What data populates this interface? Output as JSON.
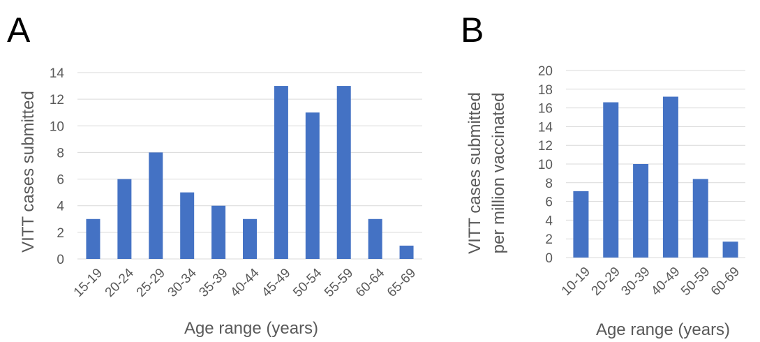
{
  "chart_data": [
    {
      "panel_label": "A",
      "type": "bar",
      "categories": [
        "15-19",
        "20-24",
        "25-29",
        "30-34",
        "35-39",
        "40-44",
        "45-49",
        "50-54",
        "55-59",
        "60-64",
        "65-69"
      ],
      "values": [
        3,
        6,
        8,
        5,
        4,
        3,
        13,
        11,
        13,
        3,
        1
      ],
      "xlabel": "Age range (years)",
      "ylabel": [
        "VITT cases submitted"
      ],
      "ylim": [
        0,
        14
      ],
      "yticks": [
        0,
        2,
        4,
        6,
        8,
        10,
        12,
        14
      ],
      "grid": true,
      "bar_color": "#4472c4"
    },
    {
      "panel_label": "B",
      "type": "bar",
      "categories": [
        "10-19",
        "20-29",
        "30-39",
        "40-49",
        "50-59",
        "60-69"
      ],
      "values": [
        7.1,
        16.6,
        10.0,
        17.2,
        8.4,
        1.7
      ],
      "xlabel": "Age range (years)",
      "ylabel": [
        "VITT cases submitted",
        "per million vaccinated"
      ],
      "ylim": [
        0,
        20
      ],
      "yticks": [
        0,
        2,
        4,
        6,
        8,
        10,
        12,
        14,
        16,
        18,
        20
      ],
      "grid": true,
      "bar_color": "#4472c4"
    }
  ]
}
